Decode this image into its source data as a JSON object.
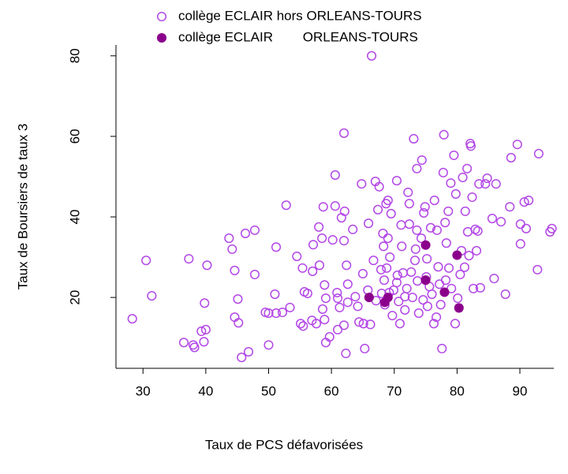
{
  "chart_data": {
    "type": "scatter",
    "x_label": "Taux de PCS défavorisées",
    "y_label": "Taux de Boursiers de taux 3",
    "xlim": [
      25.7,
      95.4
    ],
    "ylim": [
      2.4,
      82.7
    ],
    "xticks": [
      30,
      40,
      50,
      60,
      70,
      80,
      90
    ],
    "yticks": [
      20,
      40,
      60,
      80
    ],
    "series": [
      {
        "name": "collège ECLAIR hors ORLEANS-TOURS",
        "color": "#b347e6",
        "filled": false,
        "x": [
          28.3,
          30.5,
          31.4,
          37.3,
          36.5,
          38.0,
          38.2,
          39.3,
          40.0,
          39.7,
          39.8,
          40.2,
          43.7,
          44.2,
          44.6,
          45.1,
          44.6,
          45.2,
          45.7,
          46.8,
          46.3,
          47.8,
          47.8,
          49.5,
          50.0,
          50.0,
          51.0,
          51.2,
          51.2,
          52.8,
          52.2,
          53.4,
          54.5,
          55.4,
          55.1,
          55.5,
          55.7,
          56.2,
          57.0,
          56.9,
          57.1,
          57.6,
          58.0,
          58.1,
          58.5,
          58.7,
          58.9,
          59.1,
          58.6,
          58.9,
          59.1,
          59.7,
          60.2,
          60.6,
          60.6,
          60.9,
          61.0,
          61.3,
          61.0,
          61.6,
          62.1,
          62.0,
          62.0,
          62.4,
          62.6,
          62.6,
          62.0,
          62.3,
          63.4,
          63.8,
          64.2,
          64.4,
          64.8,
          65.0,
          65.1,
          65.3,
          65.8,
          65.9,
          66.2,
          66.4,
          66.7,
          67.0,
          67.1,
          67.4,
          67.6,
          67.9,
          68.0,
          68.2,
          68.3,
          68.4,
          68.7,
          68.8,
          68.5,
          69.0,
          69.0,
          69.2,
          69.3,
          69.5,
          69.7,
          69.9,
          70.4,
          70.4,
          70.5,
          70.7,
          70.9,
          71.1,
          71.2,
          71.4,
          71.7,
          71.7,
          72.0,
          72.2,
          72.4,
          72.4,
          72.7,
          72.9,
          73.1,
          73.3,
          73.4,
          73.6,
          73.6,
          73.7,
          73.9,
          74.3,
          74.4,
          74.6,
          74.7,
          74.9,
          75.1,
          75.2,
          75.3,
          75.6,
          75.8,
          76.0,
          76.3,
          76.4,
          76.7,
          76.8,
          77.0,
          77.2,
          77.4,
          77.6,
          77.8,
          77.9,
          78.1,
          78.2,
          78.3,
          78.6,
          78.7,
          79.0,
          79.1,
          79.5,
          79.7,
          79.8,
          80.1,
          80.5,
          80.7,
          80.9,
          81.2,
          81.3,
          81.6,
          81.7,
          81.9,
          82.1,
          82.2,
          82.4,
          82.6,
          82.9,
          83.1,
          83.3,
          83.5,
          83.7,
          84.5,
          84.8,
          85.6,
          85.9,
          86.2,
          87.0,
          87.7,
          88.4,
          88.6,
          89.6,
          90.1,
          90.1,
          90.7,
          91.0,
          91.4,
          92.8,
          93.0,
          94.8,
          95.1
        ],
        "values": [
          14.7,
          29.2,
          20.4,
          29.6,
          8.8,
          8.2,
          7.6,
          11.6,
          12.0,
          9.0,
          18.6,
          28.0,
          34.7,
          32.0,
          26.7,
          19.6,
          15.1,
          13.7,
          5.1,
          6.5,
          35.9,
          36.7,
          25.7,
          16.3,
          16.1,
          8.2,
          20.8,
          16.1,
          32.5,
          42.9,
          16.3,
          17.5,
          30.2,
          27.3,
          13.5,
          12.9,
          21.4,
          21.0,
          26.5,
          14.3,
          33.1,
          13.5,
          37.5,
          28.0,
          34.7,
          42.5,
          23.1,
          19.8,
          17.1,
          14.5,
          8.8,
          10.2,
          34.3,
          42.7,
          50.4,
          21.2,
          19.8,
          17.5,
          12.0,
          39.8,
          41.4,
          60.8,
          34.1,
          28.0,
          23.3,
          18.8,
          13.1,
          6.1,
          36.9,
          20.2,
          17.8,
          13.9,
          48.2,
          25.9,
          13.5,
          7.3,
          21.8,
          38.4,
          13.3,
          80.0,
          29.2,
          48.8,
          19.2,
          41.8,
          47.5,
          26.9,
          21.0,
          35.9,
          32.7,
          24.3,
          43.3,
          27.3,
          18.2,
          44.1,
          34.7,
          21.2,
          30.0,
          40.8,
          15.5,
          21.8,
          49.0,
          23.7,
          25.5,
          19.0,
          13.5,
          38.0,
          32.7,
          26.1,
          20.2,
          16.9,
          22.2,
          46.1,
          38.2,
          43.3,
          26.3,
          20.0,
          59.4,
          29.2,
          32.0,
          36.7,
          52.0,
          24.1,
          16.1,
          34.7,
          54.1,
          19.4,
          41.0,
          42.5,
          25.1,
          29.6,
          17.8,
          22.7,
          37.3,
          20.8,
          13.5,
          44.1,
          15.1,
          36.7,
          27.6,
          23.3,
          18.2,
          7.3,
          51.0,
          60.4,
          38.6,
          24.3,
          33.5,
          41.4,
          27.3,
          48.4,
          22.2,
          55.3,
          13.5,
          45.7,
          19.8,
          25.7,
          31.6,
          49.8,
          27.5,
          41.4,
          52.0,
          36.3,
          30.4,
          58.2,
          57.6,
          44.9,
          22.2,
          36.9,
          31.6,
          36.5,
          48.2,
          22.4,
          48.2,
          49.6,
          39.6,
          24.7,
          48.2,
          38.8,
          20.8,
          42.5,
          54.7,
          58.0,
          38.2,
          33.3,
          43.7,
          37.1,
          44.1,
          26.9,
          55.7,
          36.3,
          37.1
        ]
      },
      {
        "name": "collège ECLAIR        ORLEANS-TOURS",
        "color": "#8b008b",
        "filled": true,
        "x": [
          66.0,
          68.5,
          69.0,
          75.0,
          75.0,
          78.0,
          80.0,
          80.3
        ],
        "values": [
          20.0,
          18.8,
          20.0,
          33.0,
          24.3,
          21.3,
          30.5,
          17.4
        ]
      }
    ]
  }
}
